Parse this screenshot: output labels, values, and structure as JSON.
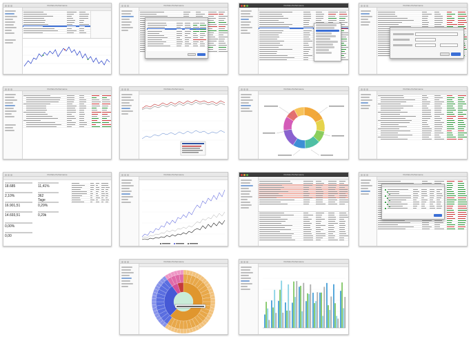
{
  "window_title": "Portfolio Performance",
  "screenshots": [
    {
      "id": "tile-1",
      "kind": "securities-table-with-line-chart"
    },
    {
      "id": "tile-2",
      "kind": "table-with-dialog"
    },
    {
      "id": "tile-3",
      "kind": "table-with-context-menu"
    },
    {
      "id": "tile-4",
      "kind": "table-with-edit-dialog"
    },
    {
      "id": "tile-5",
      "kind": "holdings-table"
    },
    {
      "id": "tile-6",
      "kind": "performance-chart"
    },
    {
      "id": "tile-7",
      "kind": "donut-chart"
    },
    {
      "id": "tile-8",
      "kind": "holdings-table-colored"
    },
    {
      "id": "tile-9",
      "kind": "dashboard-kpis"
    },
    {
      "id": "tile-10",
      "kind": "big-line-chart"
    },
    {
      "id": "tile-11",
      "kind": "highlighted-table"
    },
    {
      "id": "tile-12",
      "kind": "table-with-dialog"
    },
    {
      "id": "tile-13",
      "kind": "sunburst-chart"
    },
    {
      "id": "tile-14",
      "kind": "grouped-bar-chart"
    }
  ],
  "dashboard": {
    "kpis": [
      {
        "value": "18.685",
        "label": ""
      },
      {
        "value": "11,41%",
        "label": ""
      },
      {
        "value": "2,10%",
        "label": ""
      },
      {
        "value": "362 Tage",
        "label": ""
      },
      {
        "value": "16.901,51",
        "label": ""
      },
      {
        "value": "0,29%",
        "label": ""
      },
      {
        "value": "14.693,51",
        "label": ""
      },
      {
        "value": "0,29k",
        "label": ""
      },
      {
        "value": "0,00%",
        "label": ""
      },
      {
        "value": "0,00",
        "label": ""
      }
    ]
  }
}
